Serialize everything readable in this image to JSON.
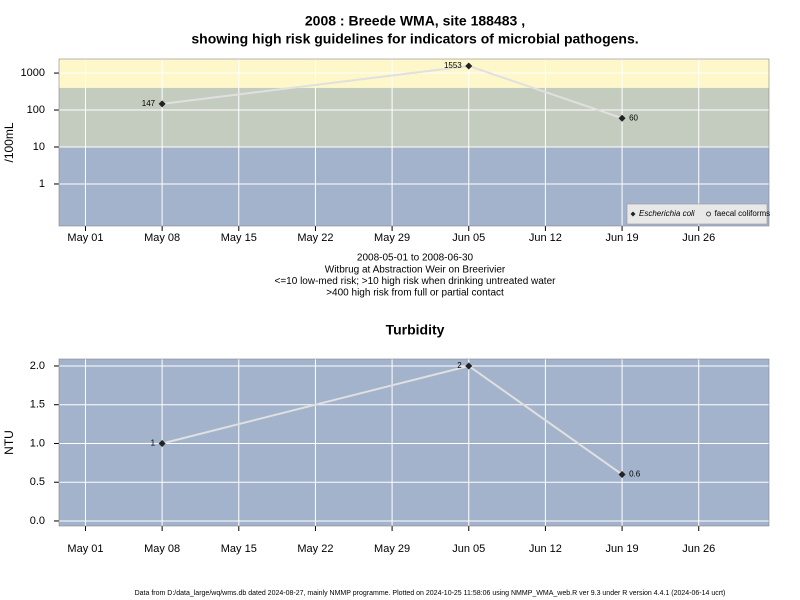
{
  "chart_data": [
    {
      "type": "line",
      "title": [
        "2008 : Breede WMA, site 188483 ,",
        "showing high risk guidelines for indicators of microbial pathogens."
      ],
      "notes": [
        "2008-05-01 to 2008-06-30",
        "Witbrug at Abstraction Weir on Breerivier",
        "<=10 low-med risk; >10 high risk when drinking untreated water",
        ">400 high risk from full or partial contact"
      ],
      "y_label": "/100mL",
      "x": [
        "2008-05-08",
        "2008-06-05",
        "2008-06-19"
      ],
      "series": [
        {
          "name": "Escherichia coli",
          "color": "#222222",
          "values": [
            147,
            1553,
            60
          ]
        },
        {
          "name": "faecal coliforms",
          "color": "#222222",
          "values": [
            null,
            null,
            null
          ]
        }
      ],
      "line_color": "#e0e0e0",
      "log_y": true,
      "ylim": [
        0.073,
        2400
      ],
      "yticks": [
        1,
        10,
        100,
        1000
      ],
      "thresholds": [
        10,
        400
      ],
      "band_colors": [
        "#a3b3cc",
        "#c4cbbf",
        "#fdf7c9"
      ],
      "xlim": [
        "2008-04-28T14:00Z",
        "2008-07-02T10:00Z"
      ],
      "xticks": [
        {
          "value": "2008-05-01",
          "label": "May 01"
        },
        {
          "value": "2008-05-08",
          "label": "May 08"
        },
        {
          "value": "2008-05-15",
          "label": "May 15"
        },
        {
          "value": "2008-05-22",
          "label": "May 22"
        },
        {
          "value": "2008-05-29",
          "label": "May 29"
        },
        {
          "value": "2008-06-05",
          "label": "Jun 05"
        },
        {
          "value": "2008-06-12",
          "label": "Jun 12"
        },
        {
          "value": "2008-06-19",
          "label": "Jun 19"
        },
        {
          "value": "2008-06-26",
          "label": "Jun 26"
        }
      ],
      "grid": true,
      "legend": "bottomright"
    },
    {
      "type": "line",
      "title": [
        "Turbidity"
      ],
      "y_label": "NTU",
      "x": [
        "2008-05-08",
        "2008-06-05",
        "2008-06-19"
      ],
      "series": [
        {
          "name": "Turbidity",
          "color": "#222222",
          "values": [
            1,
            2,
            0.6
          ]
        }
      ],
      "line_color": "#e0e0e0",
      "background": "#a3b3cc",
      "ylim": [
        -0.065,
        2.09
      ],
      "yticks": [
        {
          "value": 0,
          "label": "0.0"
        },
        0.5,
        {
          "value": 1,
          "label": "1.0"
        },
        1.5,
        {
          "value": 2,
          "label": "2.0"
        }
      ],
      "xlim": [
        "2008-04-28T14:00Z",
        "2008-07-02T10:00Z"
      ],
      "xticks": [
        {
          "value": "2008-05-01",
          "label": "May 01"
        },
        {
          "value": "2008-05-08",
          "label": "May 08"
        },
        {
          "value": "2008-05-15",
          "label": "May 15"
        },
        {
          "value": "2008-05-22",
          "label": "May 22"
        },
        {
          "value": "2008-05-29",
          "label": "May 29"
        },
        {
          "value": "2008-06-05",
          "label": "Jun 05"
        },
        {
          "value": "2008-06-12",
          "label": "Jun 12"
        },
        {
          "value": "2008-06-19",
          "label": "Jun 19"
        },
        {
          "value": "2008-06-26",
          "label": "Jun 26"
        }
      ],
      "grid": true
    }
  ],
  "footer": "Data from D:/data_large/wq/wms.db dated 2024-08-27, mainly NMMP programme. Plotted on 2024-10-25 11:58:06 using NMMP_WMA_web.R ver 9.3 under R version 4.4.1 (2024-06-14 ucrt)"
}
